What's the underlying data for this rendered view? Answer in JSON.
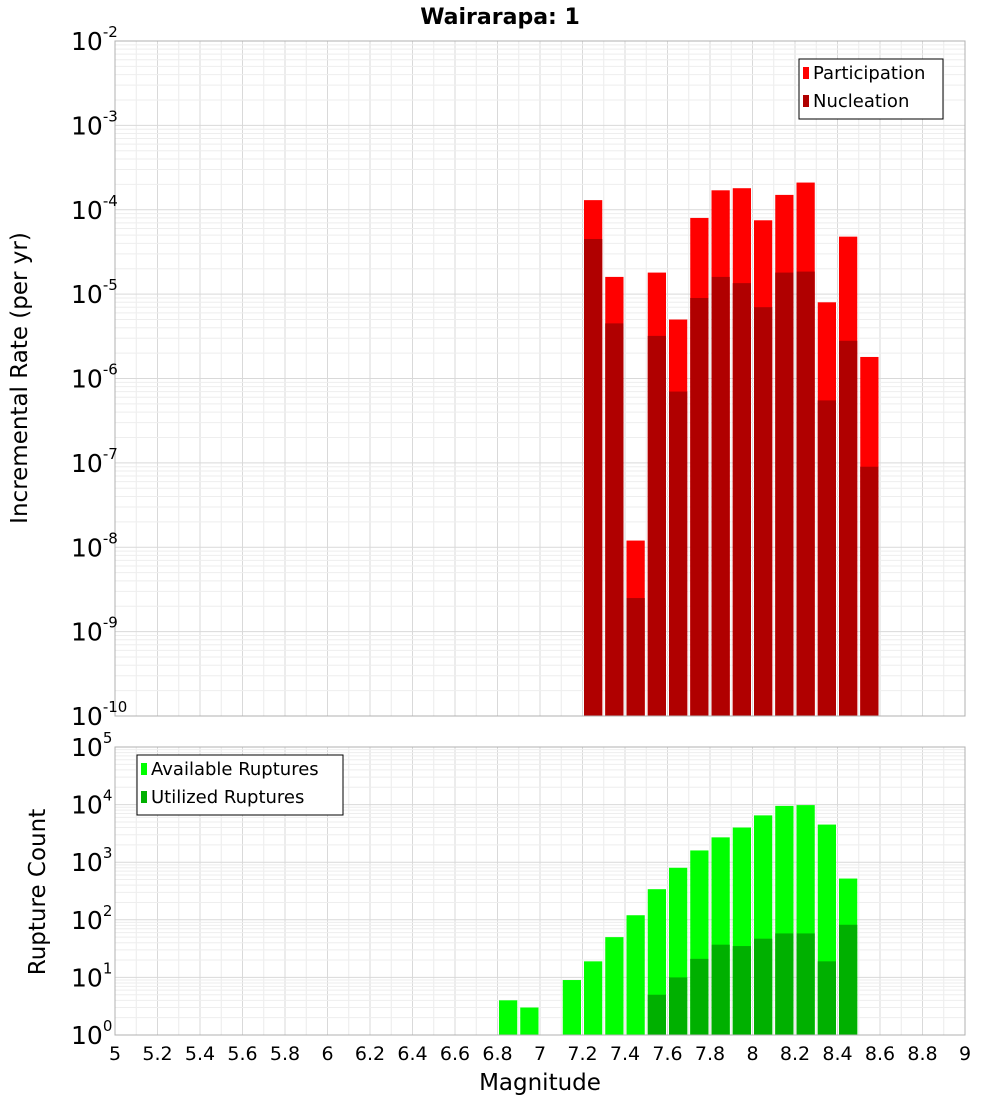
{
  "chart_data": [
    {
      "id": "rate",
      "type": "bar",
      "title": "Wairarapa: 1",
      "ylabel": "Incremental Rate (per yr)",
      "xlabel": "",
      "xlim": [
        5,
        9
      ],
      "ylim": [
        1e-10,
        0.01
      ],
      "yscale": "log",
      "grid": true,
      "legend_position": "top-right",
      "bin_width": 0.1,
      "x": [
        7.25,
        7.35,
        7.45,
        7.55,
        7.65,
        7.75,
        7.85,
        7.95,
        8.05,
        8.15,
        8.25,
        8.35,
        8.45,
        8.55
      ],
      "series": [
        {
          "name": "Participation",
          "color": "#ff0000",
          "values": [
            0.00013,
            1.6e-05,
            1.2e-08,
            1.8e-05,
            5e-06,
            8e-05,
            0.00017,
            0.00018,
            7.5e-05,
            0.00015,
            0.00021,
            8e-06,
            4.8e-05,
            1.8e-06
          ]
        },
        {
          "name": "Nucleation",
          "color": "#b00000",
          "values": [
            4.5e-05,
            4.5e-06,
            2.5e-09,
            3.2e-06,
            7e-07,
            9e-06,
            1.6e-05,
            1.35e-05,
            7e-06,
            1.8e-05,
            1.85e-05,
            5.5e-07,
            2.8e-06,
            9e-08
          ]
        }
      ],
      "yticks": [
        {
          "base": "10",
          "exp": "-2"
        },
        {
          "base": "10",
          "exp": "-3"
        },
        {
          "base": "10",
          "exp": "-4"
        },
        {
          "base": "10",
          "exp": "-5"
        },
        {
          "base": "10",
          "exp": "-6"
        },
        {
          "base": "10",
          "exp": "-7"
        },
        {
          "base": "10",
          "exp": "-8"
        },
        {
          "base": "10",
          "exp": "-9"
        },
        {
          "base": "10",
          "exp": "-10"
        }
      ]
    },
    {
      "id": "count",
      "type": "bar",
      "title": "",
      "ylabel": "Rupture Count",
      "xlabel": "Magnitude",
      "xlim": [
        5,
        9
      ],
      "ylim": [
        1,
        100000
      ],
      "yscale": "log",
      "grid": true,
      "legend_position": "top-left",
      "bin_width": 0.1,
      "x": [
        6.85,
        6.95,
        7.15,
        7.25,
        7.35,
        7.45,
        7.55,
        7.65,
        7.75,
        7.85,
        7.95,
        8.05,
        8.15,
        8.25,
        8.35,
        8.45,
        8.55
      ],
      "series": [
        {
          "name": "Available Ruptures",
          "color": "#00ff00",
          "values": [
            4,
            3,
            9,
            19,
            50,
            120,
            340,
            800,
            1600,
            2700,
            4000,
            6500,
            9500,
            9800,
            4500,
            520,
            1
          ]
        },
        {
          "name": "Utilized Ruptures",
          "color": "#00b000",
          "values": [
            0,
            0,
            0,
            1,
            1,
            1,
            5,
            10,
            21,
            37,
            35,
            47,
            58,
            58,
            19,
            82,
            1
          ]
        }
      ],
      "yticks": [
        {
          "base": "10",
          "exp": "5"
        },
        {
          "base": "10",
          "exp": "4"
        },
        {
          "base": "10",
          "exp": "3"
        },
        {
          "base": "10",
          "exp": "2"
        },
        {
          "base": "10",
          "exp": "1"
        },
        {
          "base": "10",
          "exp": "0"
        }
      ],
      "xticks": [
        "5",
        "5.2",
        "5.4",
        "5.6",
        "5.8",
        "6",
        "6.2",
        "6.4",
        "6.6",
        "6.8",
        "7",
        "7.2",
        "7.4",
        "7.6",
        "7.8",
        "8",
        "8.2",
        "8.4",
        "8.6",
        "8.8",
        "9"
      ]
    }
  ]
}
